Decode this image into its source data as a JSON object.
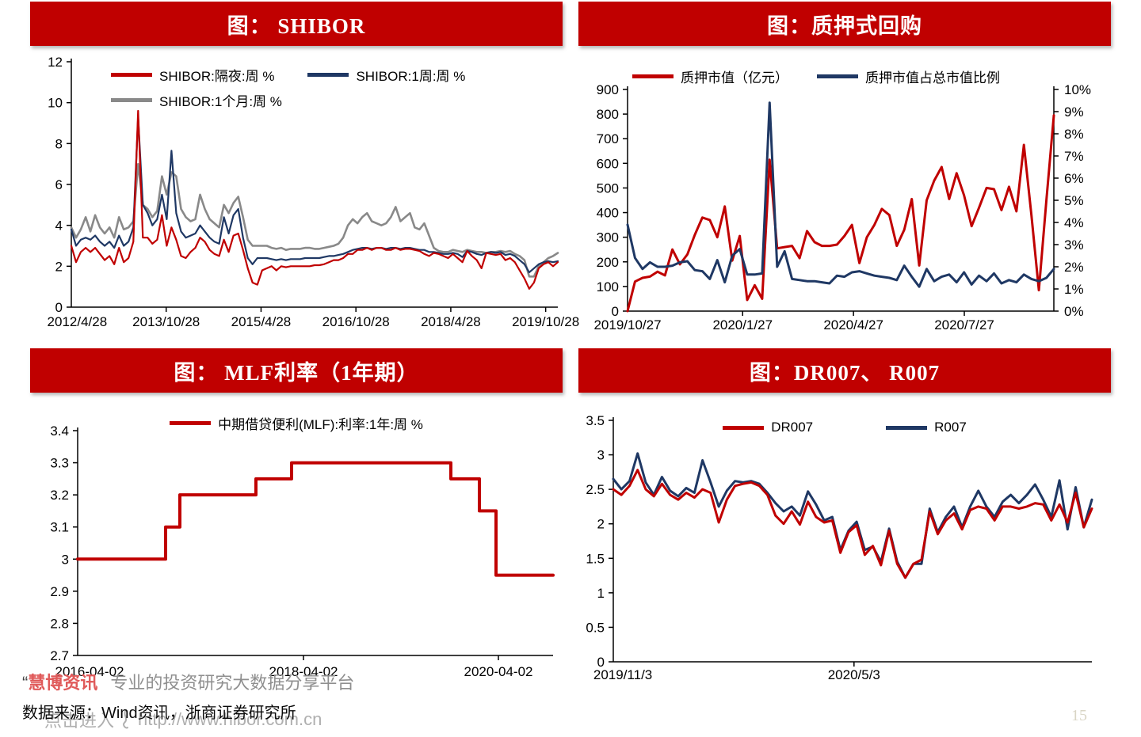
{
  "colors": {
    "banner": "#c00000",
    "red": "#c00000",
    "navy": "#1f3864",
    "gray": "#898989"
  },
  "page_number": "15",
  "footer": {
    "quote": "“",
    "brand": "慧博资讯",
    "tagline": "专业的投资研究大数据分享平台",
    "source": "数据来源：Wind资讯，浙商证券研究所",
    "watermark_cta": "点击进入",
    "watermark_url": "http://www.hibor.com.cn"
  },
  "chart_data": [
    {
      "type": "line",
      "title": "图： SHIBOR",
      "legend": [
        {
          "label": "SHIBOR:隔夜:周 %",
          "color": "#c00000"
        },
        {
          "label": "SHIBOR:1周:周 %",
          "color": "#1f3864"
        },
        {
          "label": "SHIBOR:1个月:周 %",
          "color": "#898989"
        }
      ],
      "y_axis_left": {
        "min": 0,
        "max": 12,
        "tick_values": [
          0,
          2,
          4,
          6,
          8,
          10,
          12
        ],
        "tick_labels": [
          "0",
          "2",
          "4",
          "6",
          "8",
          "10",
          "12"
        ]
      },
      "x_ticks": [
        {
          "f": 0.012,
          "label": "2012/4/28",
          "tick": false
        },
        {
          "f": 0.195,
          "label": "2013/10/28",
          "tick": true
        },
        {
          "f": 0.39,
          "label": "2015/4/28",
          "tick": true
        },
        {
          "f": 0.585,
          "label": "2016/10/28",
          "tick": true
        },
        {
          "f": 0.78,
          "label": "2018/4/28",
          "tick": true
        },
        {
          "f": 0.975,
          "label": "2019/10/28",
          "tick": true
        }
      ],
      "x_range": [
        "2012/4/28",
        "2020/10/31"
      ],
      "grid": false,
      "series": [
        {
          "name": "SHIBOR:1个月:周 %",
          "color": "#898989",
          "width": 2.6,
          "axis": "left",
          "values": [
            3.9,
            3.4,
            3.8,
            4.4,
            3.7,
            4.5,
            3.9,
            3.6,
            3.9,
            3.4,
            4.4,
            3.8,
            3.9,
            4.2,
            7.0,
            5.0,
            4.8,
            4.4,
            4.7,
            6.4,
            5.5,
            6.6,
            6.4,
            4.8,
            4.4,
            4.2,
            4.3,
            5.5,
            4.8,
            4.3,
            4.1,
            3.9,
            5.0,
            4.6,
            5.1,
            5.4,
            4.4,
            3.3,
            3.0,
            3.0,
            3.0,
            3.0,
            2.9,
            2.85,
            2.9,
            2.8,
            2.85,
            2.85,
            2.85,
            2.9,
            2.9,
            2.85,
            2.85,
            2.9,
            2.95,
            3.0,
            3.1,
            3.4,
            4.0,
            4.3,
            4.1,
            4.4,
            4.6,
            4.2,
            4.1,
            4.0,
            4.1,
            4.4,
            4.9,
            4.2,
            4.4,
            4.6,
            3.9,
            3.8,
            4.1,
            3.5,
            2.9,
            2.75,
            2.7,
            2.7,
            2.8,
            2.75,
            2.7,
            2.8,
            2.75,
            2.7,
            2.7,
            2.65,
            2.7,
            2.7,
            2.75,
            2.7,
            2.75,
            2.6,
            2.5,
            2.3,
            1.5,
            1.5,
            2.0,
            2.2,
            2.4,
            2.5,
            2.65
          ]
        },
        {
          "name": "SHIBOR:1周:周 %",
          "color": "#1f3864",
          "width": 2.2,
          "axis": "left",
          "values": [
            3.8,
            3.0,
            3.3,
            3.4,
            3.3,
            3.5,
            3.2,
            3.0,
            3.2,
            2.9,
            3.5,
            3.0,
            3.2,
            3.9,
            9.3,
            5.0,
            4.6,
            4.0,
            4.3,
            5.5,
            4.3,
            7.65,
            4.6,
            3.7,
            3.4,
            3.5,
            3.6,
            4.0,
            3.7,
            3.4,
            3.2,
            3.1,
            4.4,
            3.6,
            4.5,
            4.8,
            3.4,
            2.4,
            2.1,
            2.4,
            2.4,
            2.4,
            2.35,
            2.3,
            2.35,
            2.3,
            2.35,
            2.35,
            2.35,
            2.4,
            2.4,
            2.4,
            2.4,
            2.45,
            2.5,
            2.5,
            2.55,
            2.6,
            2.7,
            2.8,
            2.85,
            2.9,
            2.9,
            2.85,
            2.9,
            2.9,
            2.85,
            2.9,
            2.9,
            2.85,
            2.9,
            2.9,
            2.85,
            2.8,
            2.8,
            2.7,
            2.7,
            2.65,
            2.6,
            2.6,
            2.65,
            2.6,
            2.45,
            2.75,
            2.7,
            2.6,
            2.55,
            2.65,
            2.7,
            2.65,
            2.7,
            2.55,
            2.6,
            2.5,
            2.3,
            2.1,
            1.7,
            1.9,
            2.1,
            2.2,
            2.25,
            2.2,
            2.25
          ]
        },
        {
          "name": "SHIBOR:隔夜:周 %",
          "color": "#c00000",
          "width": 2.2,
          "axis": "left",
          "values": [
            3.0,
            2.2,
            2.7,
            2.9,
            2.7,
            2.9,
            2.6,
            2.3,
            2.5,
            2.1,
            2.9,
            2.2,
            2.4,
            3.2,
            9.6,
            3.4,
            3.4,
            3.1,
            3.3,
            4.5,
            3.0,
            3.9,
            3.3,
            2.5,
            2.4,
            2.7,
            2.9,
            3.4,
            3.2,
            2.8,
            2.6,
            2.5,
            3.3,
            2.7,
            3.5,
            3.6,
            2.8,
            1.9,
            1.2,
            1.1,
            1.8,
            1.9,
            2.0,
            1.8,
            2.0,
            1.95,
            2.0,
            2.0,
            2.0,
            2.0,
            2.0,
            2.05,
            2.05,
            2.1,
            2.2,
            2.3,
            2.3,
            2.4,
            2.6,
            2.6,
            2.8,
            2.8,
            2.9,
            2.8,
            2.9,
            2.9,
            2.8,
            2.8,
            2.9,
            2.8,
            2.85,
            2.85,
            2.8,
            2.75,
            2.6,
            2.5,
            2.65,
            2.6,
            2.5,
            2.4,
            2.6,
            2.4,
            2.2,
            2.75,
            2.5,
            2.3,
            1.9,
            2.65,
            2.6,
            2.55,
            2.6,
            2.3,
            2.4,
            2.2,
            1.8,
            1.4,
            0.9,
            1.2,
            1.9,
            2.1,
            2.2,
            2.0,
            2.2
          ]
        }
      ]
    },
    {
      "type": "line",
      "title": "图：质押式回购",
      "legend": [
        {
          "label": "质押市值（亿元）",
          "color": "#c00000"
        },
        {
          "label": "质押市值占总市值比例",
          "color": "#1f3864"
        }
      ],
      "y_axis_left": {
        "min": 0,
        "max": 900,
        "tick_values": [
          0,
          100,
          200,
          300,
          400,
          500,
          600,
          700,
          800,
          900
        ],
        "tick_labels": [
          "0",
          "100",
          "200",
          "300",
          "400",
          "500",
          "600",
          "700",
          "800",
          "900"
        ]
      },
      "y_axis_right": {
        "min": 0,
        "max": 10,
        "tick_values": [
          0,
          1,
          2,
          3,
          4,
          5,
          6,
          7,
          8,
          9,
          10
        ],
        "tick_labels": [
          "0%",
          "1%",
          "2%",
          "3%",
          "4%",
          "5%",
          "6%",
          "7%",
          "8%",
          "9%",
          "10%"
        ]
      },
      "x_ticks": [
        {
          "f": 0.0,
          "label": "2019/10/27",
          "tick": false
        },
        {
          "f": 0.27,
          "label": "2020/1/27",
          "tick": true
        },
        {
          "f": 0.53,
          "label": "2020/4/27",
          "tick": true
        },
        {
          "f": 0.79,
          "label": "2020/7/27",
          "tick": true
        }
      ],
      "x_range": [
        "2019/10/27",
        "2020/10/31"
      ],
      "grid": false,
      "series": [
        {
          "name": "质押市值（亿元）",
          "color": "#c00000",
          "width": 3,
          "axis": "left",
          "values": [
            0,
            120,
            135,
            140,
            160,
            145,
            250,
            190,
            230,
            310,
            380,
            370,
            300,
            425,
            205,
            305,
            45,
            105,
            50,
            615,
            255,
            260,
            265,
            215,
            325,
            280,
            265,
            265,
            270,
            305,
            350,
            195,
            300,
            350,
            415,
            390,
            265,
            330,
            455,
            185,
            450,
            530,
            585,
            455,
            560,
            470,
            345,
            420,
            500,
            495,
            410,
            505,
            405,
            675,
            390,
            85,
            450,
            795
          ]
        },
        {
          "name": "质押市值占总市值比例",
          "color": "#1f3864",
          "width": 3,
          "axis": "right",
          "values": [
            3.9,
            2.4,
            1.9,
            2.2,
            2.0,
            2.0,
            2.05,
            2.2,
            2.25,
            1.85,
            1.8,
            1.45,
            2.3,
            1.3,
            2.5,
            2.8,
            1.65,
            1.65,
            1.7,
            9.4,
            2.0,
            2.7,
            1.45,
            1.4,
            1.35,
            1.35,
            1.3,
            1.25,
            1.6,
            1.55,
            1.75,
            1.8,
            1.7,
            1.6,
            1.55,
            1.5,
            1.4,
            2.05,
            1.55,
            1.1,
            1.9,
            1.35,
            1.55,
            1.65,
            1.3,
            1.75,
            1.2,
            1.6,
            1.35,
            1.7,
            1.25,
            1.4,
            1.3,
            1.65,
            1.45,
            1.35,
            1.5,
            1.9
          ]
        }
      ]
    },
    {
      "type": "line",
      "title": "图： MLF利率（1年期）",
      "legend": [
        {
          "label": "中期借贷便利(MLF):利率:1年:周 %",
          "color": "#c00000"
        }
      ],
      "y_axis_left": {
        "min": 2.7,
        "max": 3.4,
        "tick_values": [
          2.7,
          2.8,
          2.9,
          3.0,
          3.1,
          3.2,
          3.3,
          3.4
        ],
        "tick_labels": [
          "2.7",
          "2.8",
          "2.9",
          "3",
          "3.1",
          "3.2",
          "3.3",
          "3.4"
        ]
      },
      "x_ticks": [
        {
          "f": 0.025,
          "label": "2016-04-02",
          "tick": false
        },
        {
          "f": 0.475,
          "label": "2018-04-02",
          "tick": true
        },
        {
          "f": 0.885,
          "label": "2020-04-02",
          "tick": true
        }
      ],
      "x_range": [
        "2016-04-02",
        "2020-10-31"
      ],
      "grid": false,
      "series": [
        {
          "name": "中期借贷便利(MLF):利率:1年:周 %",
          "color": "#c00000",
          "width": 4,
          "axis": "left",
          "points": [
            [
              0,
              3.0
            ],
            [
              0.185,
              3.0
            ],
            [
              0.185,
              3.1
            ],
            [
              0.215,
              3.1
            ],
            [
              0.215,
              3.2
            ],
            [
              0.375,
              3.2
            ],
            [
              0.375,
              3.25
            ],
            [
              0.45,
              3.25
            ],
            [
              0.45,
              3.3
            ],
            [
              0.785,
              3.3
            ],
            [
              0.785,
              3.25
            ],
            [
              0.845,
              3.25
            ],
            [
              0.845,
              3.15
            ],
            [
              0.88,
              3.15
            ],
            [
              0.88,
              2.95
            ],
            [
              1,
              2.95
            ]
          ]
        }
      ]
    },
    {
      "type": "line",
      "title": "图：DR007、 R007",
      "legend": [
        {
          "label": "DR007",
          "color": "#c00000"
        },
        {
          "label": "R007",
          "color": "#1f3864"
        }
      ],
      "y_axis_left": {
        "min": 0,
        "max": 3.5,
        "tick_values": [
          0,
          0.5,
          1,
          1.5,
          2,
          2.5,
          3,
          3.5
        ],
        "tick_labels": [
          "0",
          "0.5",
          "1",
          "1.5",
          "2",
          "2.5",
          "3",
          "3.5"
        ]
      },
      "x_ticks": [
        {
          "f": 0.02,
          "label": "2019/11/3",
          "tick": false
        },
        {
          "f": 0.503,
          "label": "2020/5/3",
          "tick": true
        }
      ],
      "x_range": [
        "2019/11/3",
        "2020/11/30"
      ],
      "grid": false,
      "series": [
        {
          "name": "R007",
          "color": "#1f3864",
          "width": 3,
          "axis": "left",
          "values": [
            2.65,
            2.5,
            2.62,
            3.02,
            2.6,
            2.42,
            2.68,
            2.48,
            2.4,
            2.52,
            2.45,
            2.92,
            2.6,
            2.25,
            2.48,
            2.62,
            2.6,
            2.62,
            2.58,
            2.45,
            2.3,
            2.18,
            2.25,
            2.12,
            2.47,
            2.28,
            2.05,
            2.1,
            1.62,
            1.9,
            2.03,
            1.62,
            1.67,
            1.45,
            1.93,
            1.45,
            1.22,
            1.42,
            1.42,
            2.22,
            1.88,
            2.1,
            2.25,
            1.95,
            2.25,
            2.48,
            2.25,
            2.1,
            2.32,
            2.42,
            2.3,
            2.42,
            2.57,
            2.35,
            2.1,
            2.63,
            1.92,
            2.53,
            1.95,
            2.35
          ]
        },
        {
          "name": "DR007",
          "color": "#c00000",
          "width": 3,
          "axis": "left",
          "values": [
            2.5,
            2.42,
            2.55,
            2.78,
            2.5,
            2.4,
            2.58,
            2.42,
            2.35,
            2.45,
            2.38,
            2.5,
            2.45,
            2.02,
            2.35,
            2.55,
            2.58,
            2.6,
            2.55,
            2.42,
            2.12,
            2.0,
            2.18,
            1.99,
            2.32,
            2.1,
            2.02,
            2.05,
            1.58,
            1.88,
            1.98,
            1.55,
            1.68,
            1.4,
            1.9,
            1.42,
            1.22,
            1.42,
            1.48,
            2.18,
            1.85,
            2.05,
            2.15,
            1.92,
            2.2,
            2.25,
            2.22,
            2.05,
            2.25,
            2.25,
            2.22,
            2.25,
            2.3,
            2.28,
            2.05,
            2.28,
            2.02,
            2.45,
            1.95,
            2.22
          ]
        }
      ]
    }
  ]
}
